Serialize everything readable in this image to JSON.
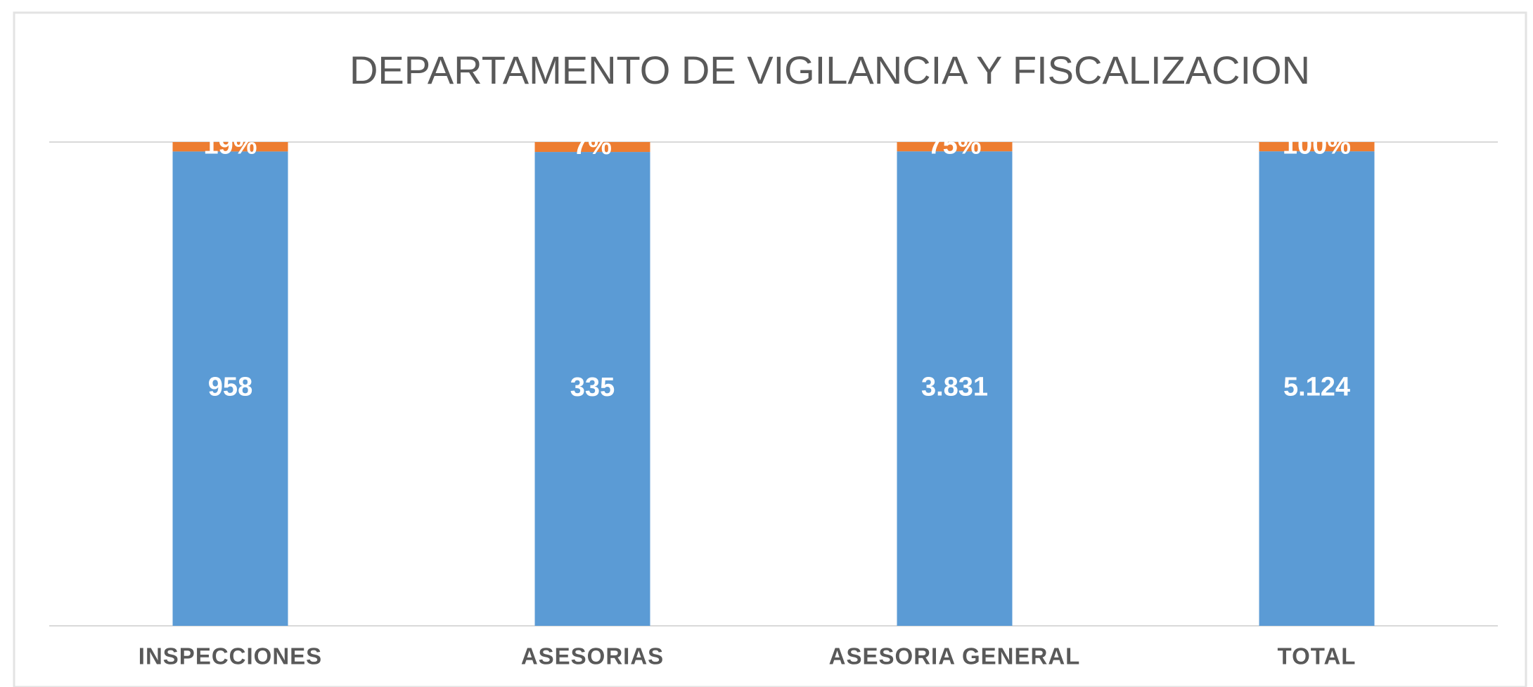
{
  "chart_data": {
    "type": "bar",
    "stacked": "percent",
    "title": "DEPARTAMENTO DE VIGILANCIA Y FISCALIZACION",
    "categories": [
      "INSPECCIONES",
      "ASESORIAS",
      "ASESORIA GENERAL",
      "TOTAL"
    ],
    "series": [
      {
        "color": "#5b9bd5",
        "values": [
          958,
          335,
          3831,
          5124
        ],
        "value_labels": [
          "958",
          "335",
          "3.831",
          "5.124"
        ]
      },
      {
        "color": "#ed7d31",
        "values": [
          19,
          7,
          75,
          100
        ],
        "value_labels": [
          "19%",
          "7%",
          "75%",
          "100%"
        ]
      }
    ],
    "grid": true
  }
}
